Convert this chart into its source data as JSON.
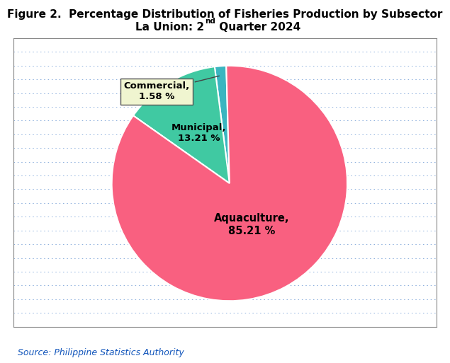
{
  "title_line1": "Figure 2.  Percentage Distribution of Fisheries Production by Subsector",
  "source": "Source: Philippine Statistics Authority",
  "slices": [
    {
      "label": "Commercial",
      "pct": 1.58,
      "color": "#3ab5c0"
    },
    {
      "label": "Municipal",
      "pct": 13.21,
      "color": "#40c9a2"
    },
    {
      "label": "Aquaculture",
      "pct": 85.21,
      "color": "#f96080"
    }
  ],
  "bg_color": "#ffffff",
  "plot_bg_color": "#ffffff",
  "grid_color": "#5588cc",
  "title_color": "#000000",
  "source_color": "#1155bb",
  "commercial_box_facecolor": "#f0f5d0",
  "commercial_box_edgecolor": "#555555",
  "startangle": 91.58
}
